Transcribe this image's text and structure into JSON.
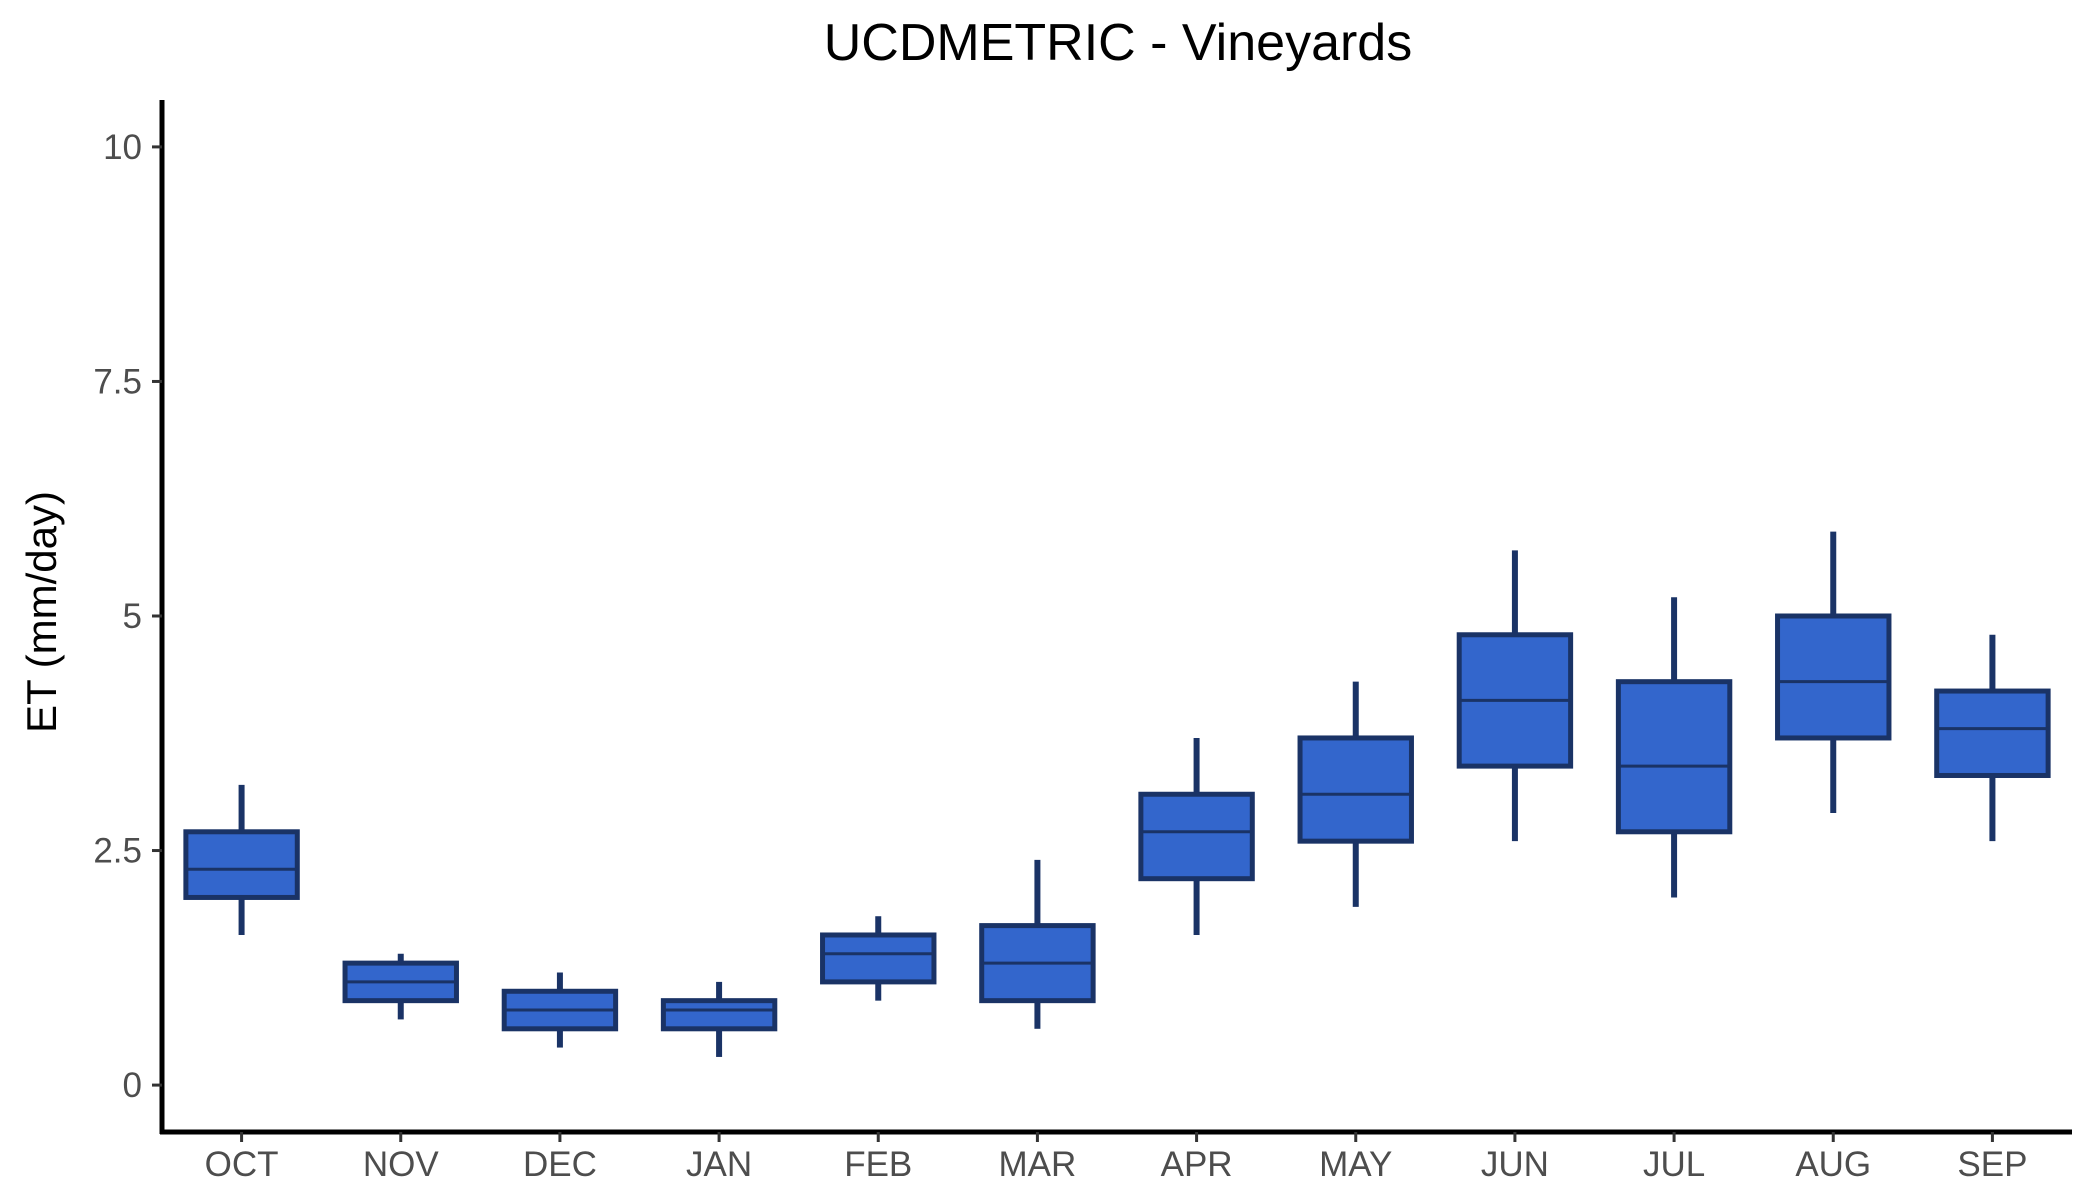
{
  "chart_data": {
    "type": "boxplot",
    "title": "UCDMETRIC - Vineyards",
    "xlabel": "",
    "ylabel": "ET (mm/day)",
    "ylim": [
      -0.5,
      10.5
    ],
    "yticks": [
      0,
      2.5,
      5,
      7.5,
      10
    ],
    "ytick_labels": [
      "0",
      "2.5",
      "5",
      "7.5",
      "10"
    ],
    "categories": [
      "OCT",
      "NOV",
      "DEC",
      "JAN",
      "FEB",
      "MAR",
      "APR",
      "MAY",
      "JUN",
      "JUL",
      "AUG",
      "SEP"
    ],
    "boxes": [
      {
        "min": 1.6,
        "q1": 2.0,
        "median": 2.3,
        "q3": 2.7,
        "max": 3.2
      },
      {
        "min": 0.7,
        "q1": 0.9,
        "median": 1.1,
        "q3": 1.3,
        "max": 1.4
      },
      {
        "min": 0.4,
        "q1": 0.6,
        "median": 0.8,
        "q3": 1.0,
        "max": 1.2
      },
      {
        "min": 0.3,
        "q1": 0.6,
        "median": 0.8,
        "q3": 0.9,
        "max": 1.1
      },
      {
        "min": 0.9,
        "q1": 1.1,
        "median": 1.4,
        "q3": 1.6,
        "max": 1.8
      },
      {
        "min": 0.6,
        "q1": 0.9,
        "median": 1.3,
        "q3": 1.7,
        "max": 2.4
      },
      {
        "min": 1.6,
        "q1": 2.2,
        "median": 2.7,
        "q3": 3.1,
        "max": 3.7
      },
      {
        "min": 1.9,
        "q1": 2.6,
        "median": 3.1,
        "q3": 3.7,
        "max": 4.3
      },
      {
        "min": 2.6,
        "q1": 3.4,
        "median": 4.1,
        "q3": 4.8,
        "max": 5.7
      },
      {
        "min": 2.0,
        "q1": 2.7,
        "median": 3.4,
        "q3": 4.3,
        "max": 5.2
      },
      {
        "min": 2.9,
        "q1": 3.7,
        "median": 4.3,
        "q3": 5.0,
        "max": 5.9
      },
      {
        "min": 2.6,
        "q1": 3.3,
        "median": 3.8,
        "q3": 4.2,
        "max": 4.8
      }
    ],
    "grid": false,
    "legend": "none",
    "colors": {
      "box_fill": "#3366cc",
      "box_line": "#1a3366",
      "axis": "#000000",
      "tick_label": "#4d4d4d"
    }
  }
}
